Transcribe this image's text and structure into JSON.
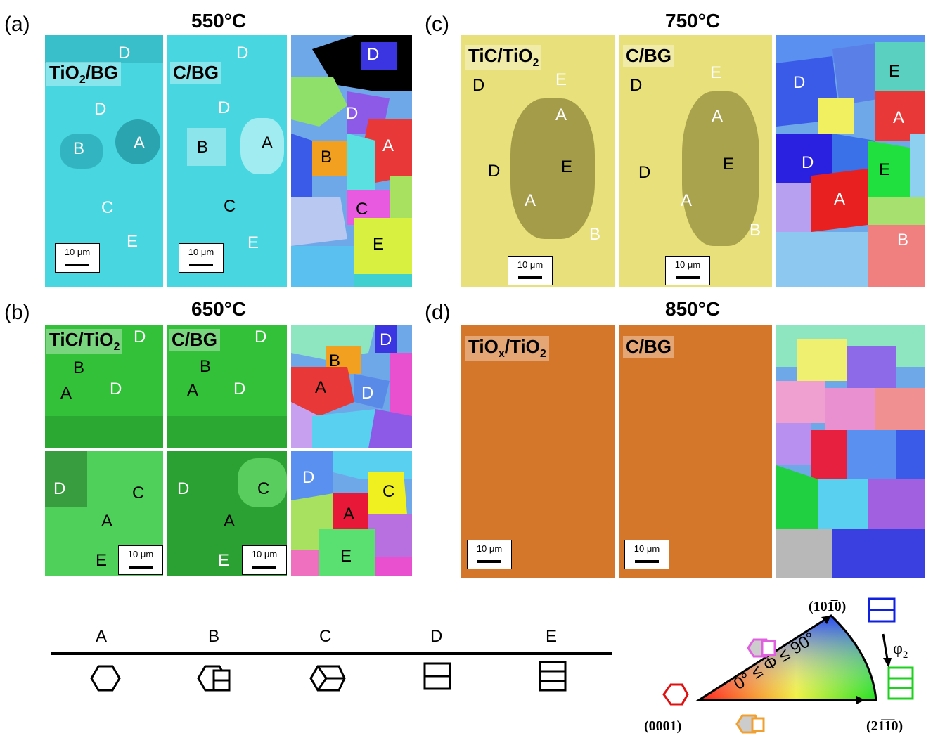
{
  "panels": {
    "a": {
      "label": "(a)",
      "temp": "550°C",
      "left_label": "TiO2/BG",
      "left_main": "TiO",
      "left_sub": "2",
      "left_rest": "/BG",
      "mid_label": "C/BG"
    },
    "b": {
      "label": "(b)",
      "temp": "650°C",
      "left_main": "TiC/TiO",
      "left_sub": "2",
      "mid_label": "C/BG"
    },
    "c": {
      "label": "(c)",
      "temp": "750°C",
      "left_main": "TiC/TiO",
      "left_sub": "2",
      "mid_label": "C/BG"
    },
    "d": {
      "label": "(d)",
      "temp": "850°C",
      "left_main": "TiO",
      "left_sub": "x",
      "left_rest": "/TiO2",
      "left_tail": "/TiO",
      "left_sub2": "2",
      "mid_label": "C/BG"
    }
  },
  "scale_bar": "10 μm",
  "grains": {
    "A": "A",
    "B": "B",
    "C": "C",
    "D": "D",
    "E": "E"
  },
  "legend": {
    "letters": [
      "A",
      "B",
      "C",
      "D",
      "E"
    ]
  },
  "ipf": {
    "top": "(101̅0)",
    "left": "(0001)",
    "right": "(21̅1̅0)",
    "range": "0° ≤ Φ ≤ 90°",
    "phi2": "φ",
    "phi2_sub": "2"
  },
  "colors": {
    "cyan": "#48d7e0",
    "green": "#33c13a",
    "yellow": "#e8e07a",
    "orange": "#d4772a"
  }
}
